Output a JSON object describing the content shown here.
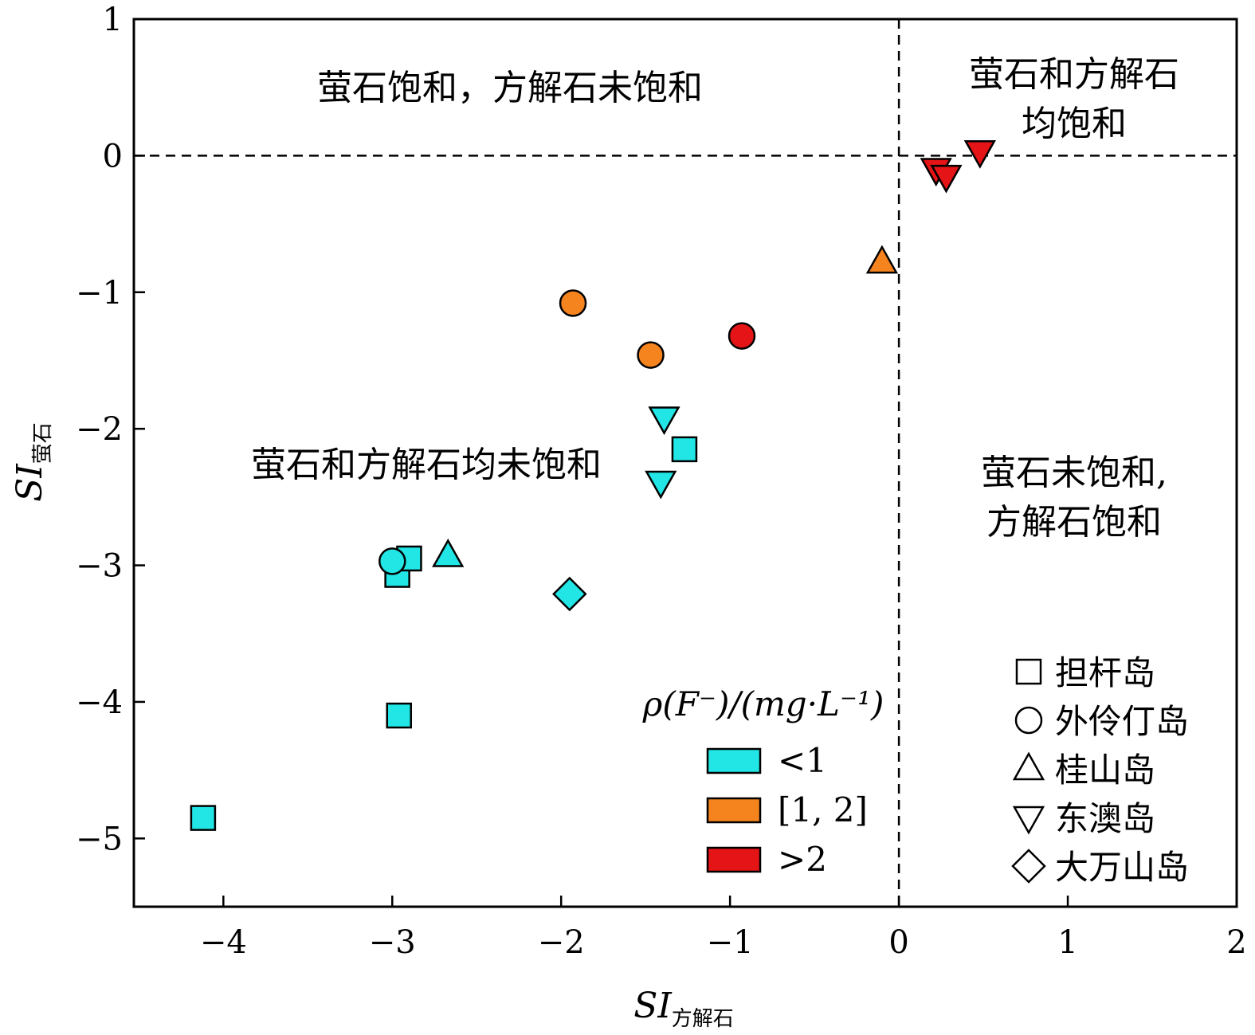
{
  "chart_data": {
    "type": "scatter",
    "title": "",
    "xlabel": {
      "main": "SI",
      "sub": "方解石"
    },
    "ylabel": {
      "main": "SI",
      "sub": "萤石"
    },
    "xlim": [
      -4.53,
      2.0
    ],
    "ylim": [
      -5.5,
      1.0
    ],
    "x_ticks": [
      -4,
      -3,
      -2,
      -1,
      0,
      1,
      2
    ],
    "y_ticks": [
      1,
      0,
      -1,
      -2,
      -3,
      -4,
      -5
    ],
    "x_tick_labels": [
      "−4",
      "−3",
      "−2",
      "−1",
      "0",
      "1",
      "2"
    ],
    "y_tick_labels": [
      "1",
      "0",
      "−1",
      "−2",
      "−3",
      "−4",
      "−5"
    ],
    "grid": false,
    "reference_lines": {
      "x": 0,
      "y": 0,
      "style": "dashed"
    },
    "region_labels": [
      {
        "lines": [
          "萤石饱和，方解石未饱和"
        ],
        "position": "top-left"
      },
      {
        "lines": [
          "萤石和方解石",
          "均饱和"
        ],
        "position": "top-right"
      },
      {
        "lines": [
          "萤石和方解石均未饱和"
        ],
        "position": "center-left"
      },
      {
        "lines": [
          "萤石未饱和,",
          "方解石饱和"
        ],
        "position": "center-right"
      }
    ],
    "color_legend": {
      "title": "ρ(F⁻)/(mg·L⁻¹)",
      "items": [
        {
          "label": "<1",
          "color": "#22e5e5"
        },
        {
          "label": "[1, 2]",
          "color": "#f5841f"
        },
        {
          "label": ">2",
          "color": "#e51416"
        }
      ],
      "position": "bottom-center"
    },
    "shape_legend": {
      "items": [
        {
          "label": "担杆岛",
          "marker": "square"
        },
        {
          "label": "外伶仃岛",
          "marker": "circle"
        },
        {
          "label": "桂山岛",
          "marker": "triangle-up"
        },
        {
          "label": "东澳岛",
          "marker": "triangle-down"
        },
        {
          "label": "大万山岛",
          "marker": "diamond"
        }
      ],
      "position": "bottom-right"
    },
    "series": [
      {
        "name": "担杆岛",
        "marker": "square",
        "points": [
          {
            "x": -4.12,
            "y": -4.85,
            "group": "<1"
          },
          {
            "x": -2.96,
            "y": -4.1,
            "group": "<1"
          },
          {
            "x": -2.97,
            "y": -3.07,
            "group": "<1"
          },
          {
            "x": -2.9,
            "y": -2.95,
            "group": "<1"
          },
          {
            "x": -1.27,
            "y": -2.15,
            "group": "<1"
          }
        ]
      },
      {
        "name": "外伶仃岛",
        "marker": "circle",
        "points": [
          {
            "x": -3.0,
            "y": -2.97,
            "group": "<1"
          },
          {
            "x": -1.93,
            "y": -1.08,
            "group": "[1, 2]"
          },
          {
            "x": -1.47,
            "y": -1.46,
            "group": "[1, 2]"
          },
          {
            "x": -0.93,
            "y": -1.32,
            "group": ">2"
          }
        ]
      },
      {
        "name": "桂山岛",
        "marker": "triangle-up",
        "points": [
          {
            "x": -2.67,
            "y": -2.93,
            "group": "<1"
          },
          {
            "x": -0.1,
            "y": -0.78,
            "group": "[1, 2]"
          }
        ]
      },
      {
        "name": "东澳岛",
        "marker": "triangle-down",
        "points": [
          {
            "x": -1.39,
            "y": -1.92,
            "group": "<1"
          },
          {
            "x": -1.41,
            "y": -2.39,
            "group": "<1"
          },
          {
            "x": 0.22,
            "y": -0.1,
            "group": ">2"
          },
          {
            "x": 0.28,
            "y": -0.15,
            "group": ">2"
          },
          {
            "x": 0.48,
            "y": 0.03,
            "group": ">2"
          }
        ]
      },
      {
        "name": "大万山岛",
        "marker": "diamond",
        "points": [
          {
            "x": -1.95,
            "y": -3.21,
            "group": "<1"
          }
        ]
      }
    ]
  }
}
